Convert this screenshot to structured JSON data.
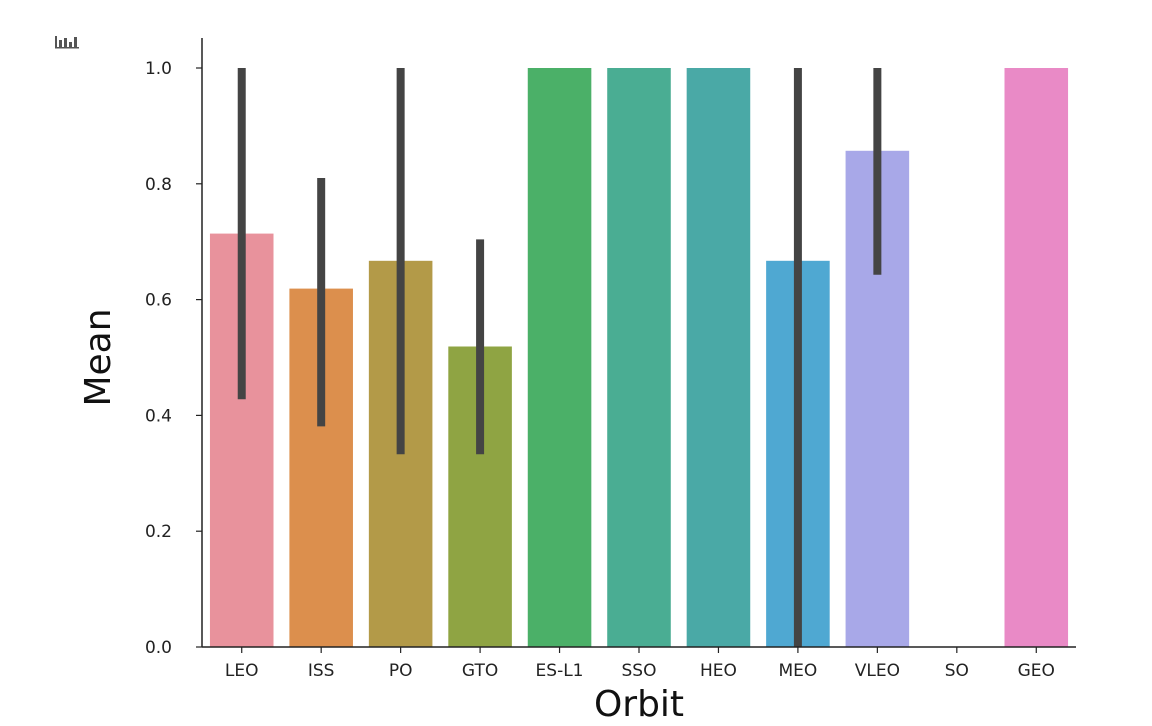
{
  "toolbar": {
    "icon": "bar-chart-icon"
  },
  "chart_data": {
    "type": "bar",
    "title": "",
    "xlabel": "Orbit",
    "ylabel": "Mean",
    "ylim": [
      0,
      1.05
    ],
    "yticks": [
      "0.0",
      "0.2",
      "0.4",
      "0.6",
      "0.8",
      "1.0"
    ],
    "categories": [
      "LEO",
      "ISS",
      "PO",
      "GTO",
      "ES-L1",
      "SSO",
      "HEO",
      "MEO",
      "VLEO",
      "SO",
      "GEO"
    ],
    "values": [
      0.714,
      0.619,
      0.667,
      0.519,
      1.0,
      1.0,
      1.0,
      0.667,
      0.857,
      0.0,
      1.0
    ],
    "error_low": [
      0.428,
      0.381,
      0.333,
      0.333,
      null,
      null,
      null,
      0.0,
      0.643,
      null,
      null
    ],
    "error_high": [
      1.0,
      0.81,
      1.0,
      0.704,
      null,
      null,
      null,
      1.0,
      1.0,
      null,
      null
    ],
    "colors": [
      "#e8929c",
      "#dc8f4d",
      "#b39a48",
      "#8fa443",
      "#4bb068",
      "#4aad93",
      "#4aa9a6",
      "#4fa8d2",
      "#a8a8e8",
      "#cc88dd",
      "#e98ac6"
    ],
    "grid": false,
    "legend": "none"
  }
}
